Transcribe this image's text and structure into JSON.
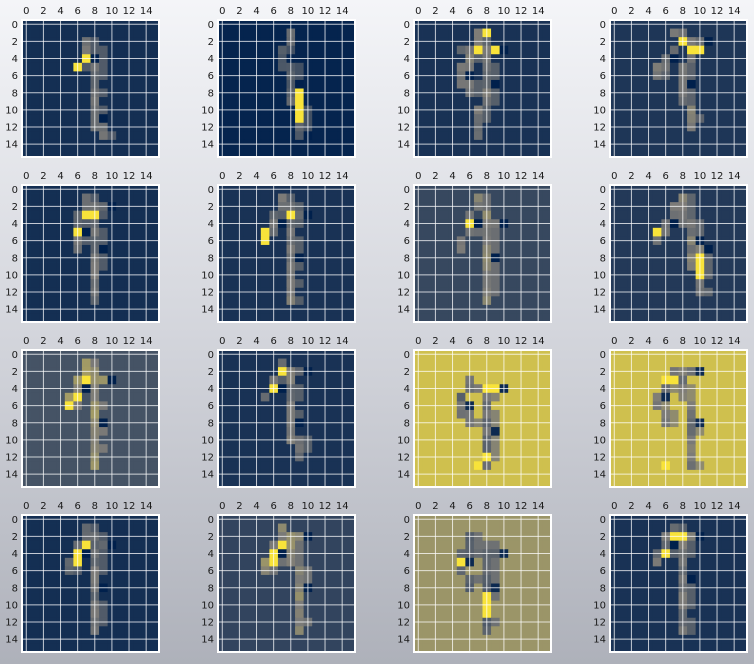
{
  "chart_data": {
    "type": "heatmap",
    "layout": {
      "rows": 4,
      "cols": 4
    },
    "grid": true,
    "x_ticks": [
      "0",
      "2",
      "4",
      "6",
      "8",
      "10",
      "12",
      "14"
    ],
    "y_ticks": [
      "0",
      "2",
      "4",
      "6",
      "8",
      "10",
      "12",
      "14"
    ],
    "image_size": [
      16,
      16
    ],
    "colormap": {
      "low": "#00204c",
      "mid": "#7c7b78",
      "high": "#fde737",
      "name": "cividis"
    },
    "panels": [
      {
        "bg": 0.08,
        "strokes": [
          [
            [
              6,
              5
            ],
            [
              7,
              4
            ],
            [
              8,
              3
            ]
          ],
          [
            [
              7,
              2
            ],
            [
              8,
              6
            ],
            [
              8,
              11
            ],
            [
              9,
              13
            ]
          ]
        ],
        "intensity": 0.35,
        "hot": [
          [
            6,
            5
          ],
          [
            7,
            4
          ]
        ]
      },
      {
        "bg": 0.02,
        "strokes": [
          [
            [
              8,
              1
            ],
            [
              7,
              4
            ],
            [
              8,
              7
            ],
            [
              9,
              12
            ]
          ],
          [
            [
              8,
              5
            ],
            [
              9,
              13
            ]
          ]
        ],
        "intensity": 0.35,
        "hot": [
          [
            9,
            8
          ],
          [
            9,
            9
          ],
          [
            9,
            10
          ],
          [
            9,
            11
          ]
        ]
      },
      {
        "bg": 0.1,
        "strokes": [
          [
            [
              7,
              1
            ],
            [
              6,
              4
            ],
            [
              5,
              6
            ],
            [
              6,
              8
            ]
          ],
          [
            [
              8,
              2
            ],
            [
              8,
              7
            ],
            [
              7,
              13
            ]
          ],
          [
            [
              5,
              3
            ],
            [
              9,
              3
            ]
          ]
        ],
        "intensity": 0.35,
        "hot": [
          [
            8,
            1
          ],
          [
            7,
            3
          ],
          [
            9,
            3
          ]
        ]
      },
      {
        "bg": 0.12,
        "strokes": [
          [
            [
              8,
              2
            ],
            [
              6,
              4
            ],
            [
              5,
              6
            ]
          ],
          [
            [
              9,
              3
            ],
            [
              8,
              7
            ],
            [
              9,
              12
            ]
          ],
          [
            [
              7,
              1
            ],
            [
              10,
              2
            ]
          ]
        ],
        "intensity": 0.35,
        "hot": [
          [
            8,
            2
          ],
          [
            9,
            3
          ],
          [
            10,
            3
          ]
        ]
      },
      {
        "bg": 0.08,
        "strokes": [
          [
            [
              7,
              1
            ],
            [
              6,
              5
            ],
            [
              6,
              7
            ]
          ],
          [
            [
              8,
              3
            ],
            [
              8,
              7
            ],
            [
              8,
              13
            ]
          ],
          [
            [
              7,
              2
            ],
            [
              9,
              2
            ]
          ]
        ],
        "intensity": 0.35,
        "hot": [
          [
            7,
            3
          ],
          [
            8,
            3
          ],
          [
            6,
            5
          ]
        ]
      },
      {
        "bg": 0.1,
        "strokes": [
          [
            [
              7,
              1
            ],
            [
              6,
              4
            ],
            [
              5,
              6
            ]
          ],
          [
            [
              8,
              3
            ],
            [
              8,
              8
            ],
            [
              8,
              13
            ]
          ],
          [
            [
              7,
              2
            ],
            [
              9,
              3
            ]
          ]
        ],
        "intensity": 0.35,
        "hot": [
          [
            8,
            3
          ],
          [
            5,
            5
          ],
          [
            5,
            6
          ]
        ]
      },
      {
        "bg": 0.22,
        "strokes": [
          [
            [
              7,
              1
            ],
            [
              6,
              4
            ],
            [
              5,
              7
            ]
          ],
          [
            [
              8,
              3
            ],
            [
              8,
              8
            ],
            [
              8,
              13
            ]
          ],
          [
            [
              6,
              4
            ],
            [
              9,
              4
            ]
          ]
        ],
        "intensity": 0.3,
        "hot": [
          [
            6,
            4
          ],
          [
            7,
            4
          ]
        ]
      },
      {
        "bg": 0.14,
        "strokes": [
          [
            [
              8,
              1
            ],
            [
              6,
              4
            ],
            [
              5,
              6
            ]
          ],
          [
            [
              8,
              2
            ],
            [
              9,
              6
            ],
            [
              10,
              12
            ]
          ],
          [
            [
              9,
              4
            ],
            [
              10,
              7
            ],
            [
              10,
              11
            ]
          ]
        ],
        "intensity": 0.35,
        "hot": [
          [
            5,
            5
          ],
          [
            10,
            8
          ],
          [
            10,
            9
          ],
          [
            10,
            10
          ]
        ]
      },
      {
        "bg": 0.28,
        "strokes": [
          [
            [
              7,
              1
            ],
            [
              6,
              4
            ],
            [
              5,
              6
            ]
          ],
          [
            [
              8,
              3
            ],
            [
              8,
              8
            ],
            [
              8,
              13
            ]
          ],
          [
            [
              7,
              2
            ],
            [
              9,
              3
            ]
          ]
        ],
        "intensity": 0.3,
        "hot": [
          [
            7,
            3
          ],
          [
            6,
            5
          ],
          [
            5,
            6
          ]
        ]
      },
      {
        "bg": 0.1,
        "strokes": [
          [
            [
              7,
              1
            ],
            [
              6,
              4
            ],
            [
              5,
              5
            ]
          ],
          [
            [
              8,
              3
            ],
            [
              8,
              8
            ],
            [
              9,
              12
            ]
          ],
          [
            [
              7,
              2
            ],
            [
              9,
              2
            ]
          ]
        ],
        "intensity": 0.35,
        "hot": [
          [
            7,
            4
          ],
          [
            6,
            4
          ],
          [
            7,
            2
          ]
        ]
      },
      {
        "bg": 0.82,
        "strokes": [
          [
            [
              6,
              3
            ],
            [
              5,
              6
            ],
            [
              6,
              8
            ]
          ],
          [
            [
              8,
              4
            ],
            [
              8,
              9
            ],
            [
              8,
              13
            ]
          ],
          [
            [
              6,
              4
            ],
            [
              9,
              4
            ]
          ]
        ],
        "intensity": -0.4,
        "hot": [
          [
            8,
            4
          ],
          [
            9,
            4
          ],
          [
            8,
            12
          ],
          [
            7,
            13
          ]
        ]
      },
      {
        "bg": 0.82,
        "strokes": [
          [
            [
              7,
              2
            ],
            [
              5,
              5
            ],
            [
              6,
              8
            ]
          ],
          [
            [
              8,
              3
            ],
            [
              9,
              8
            ],
            [
              9,
              13
            ]
          ],
          [
            [
              7,
              3
            ],
            [
              9,
              2
            ]
          ]
        ],
        "intensity": -0.35,
        "hot": [
          [
            6,
            3
          ],
          [
            7,
            3
          ],
          [
            6,
            13
          ]
        ]
      },
      {
        "bg": 0.08,
        "strokes": [
          [
            [
              7,
              1
            ],
            [
              6,
              4
            ],
            [
              5,
              6
            ]
          ],
          [
            [
              8,
              3
            ],
            [
              8,
              8
            ],
            [
              8,
              13
            ]
          ],
          [
            [
              7,
              2
            ],
            [
              9,
              3
            ]
          ]
        ],
        "intensity": 0.35,
        "hot": [
          [
            7,
            3
          ],
          [
            6,
            4
          ],
          [
            6,
            5
          ]
        ]
      },
      {
        "bg": 0.2,
        "strokes": [
          [
            [
              7,
              1
            ],
            [
              6,
              4
            ],
            [
              5,
              6
            ]
          ],
          [
            [
              8,
              3
            ],
            [
              9,
              8
            ],
            [
              9,
              13
            ]
          ],
          [
            [
              7,
              2
            ],
            [
              9,
              2
            ]
          ]
        ],
        "intensity": 0.35,
        "hot": [
          [
            6,
            4
          ],
          [
            7,
            3
          ],
          [
            6,
            5
          ]
        ]
      },
      {
        "bg": 0.62,
        "strokes": [
          [
            [
              6,
              2
            ],
            [
              5,
              5
            ],
            [
              6,
              8
            ]
          ],
          [
            [
              8,
              3
            ],
            [
              8,
              8
            ],
            [
              8,
              13
            ]
          ],
          [
            [
              6,
              4
            ],
            [
              9,
              4
            ]
          ]
        ],
        "intensity": -0.25,
        "hot": [
          [
            5,
            5
          ],
          [
            8,
            9
          ],
          [
            8,
            10
          ],
          [
            8,
            11
          ]
        ]
      },
      {
        "bg": 0.1,
        "strokes": [
          [
            [
              7,
              1
            ],
            [
              6,
              3
            ],
            [
              5,
              5
            ]
          ],
          [
            [
              8,
              2
            ],
            [
              8,
              7
            ],
            [
              8,
              13
            ]
          ],
          [
            [
              7,
              2
            ],
            [
              9,
              2
            ]
          ]
        ],
        "intensity": 0.35,
        "hot": [
          [
            7,
            2
          ],
          [
            8,
            2
          ],
          [
            6,
            4
          ]
        ]
      }
    ]
  }
}
